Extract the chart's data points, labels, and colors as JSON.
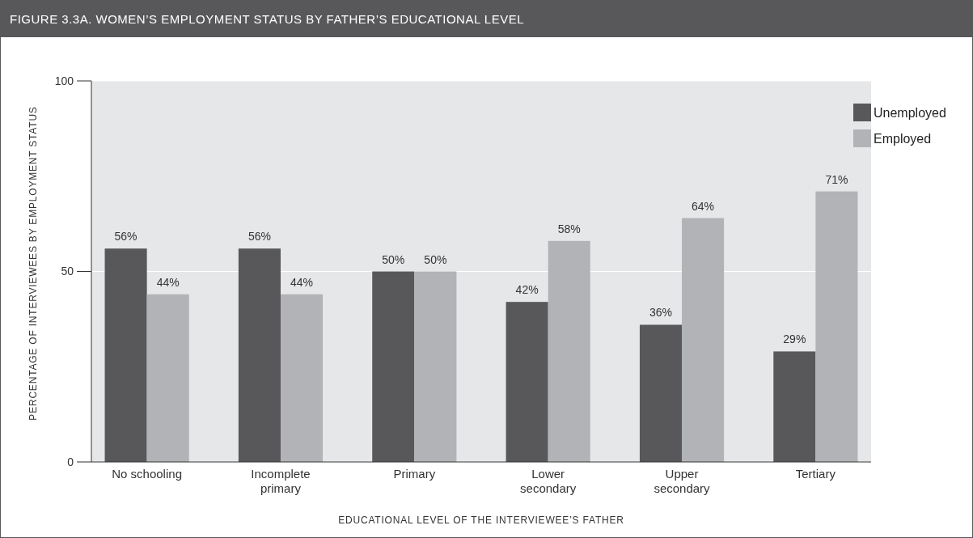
{
  "chart_data": {
    "type": "bar",
    "title": "FIGURE 3.3A. WOMEN’S EMPLOYMENT STATUS BY FATHER’S EDUCATIONAL LEVEL",
    "xlabel": "EDUCATIONAL LEVEL OF THE INTERVIEWEE’S FATHER",
    "ylabel": "PERCENTAGE OF INTERVIEWEES BY EMPLOYMENT STATUS",
    "categories": [
      "No schooling",
      "Incomplete primary",
      "Primary",
      "Lower secondary",
      "Upper secondary",
      "Tertiary"
    ],
    "series": [
      {
        "name": "Unemployed",
        "color": "#58585a",
        "values": [
          56,
          56,
          50,
          42,
          36,
          29
        ],
        "value_labels": [
          "56%",
          "56%",
          "50%",
          "42%",
          "36%",
          "29%"
        ]
      },
      {
        "name": "Employed",
        "color": "#b1b3b6",
        "values": [
          44,
          44,
          50,
          58,
          64,
          71
        ],
        "value_labels": [
          "44%",
          "44%",
          "50%",
          "58%",
          "64%",
          "71%"
        ]
      }
    ],
    "ylim": [
      0,
      100
    ],
    "yticks": [
      0,
      50,
      100
    ],
    "grid": "y",
    "legend": "top right"
  }
}
